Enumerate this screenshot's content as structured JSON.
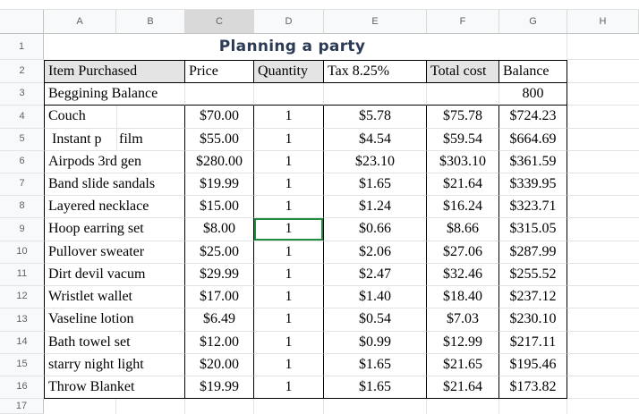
{
  "sheet": {
    "title": "Planning a party",
    "selected_cell": "D9",
    "highlighted_column": "C",
    "colors": {
      "selection_green": "#1e8e3e",
      "title_color": "#2b3a55",
      "header_row_fill": "#e4e4e4",
      "highlighted_column_header_fill": "#d9d9d9"
    },
    "column_letters": [
      "A",
      "B",
      "C",
      "D",
      "E",
      "F",
      "G",
      "H"
    ],
    "row_numbers": [
      "1",
      "2",
      "3",
      "4",
      "5",
      "6",
      "7",
      "8",
      "9",
      "10",
      "11",
      "12",
      "13",
      "14",
      "15",
      "16",
      "17"
    ],
    "header_row": {
      "item": "Item Purchased",
      "price": "Price",
      "qty": "Quantity",
      "tax": "Tax 8.25%",
      "total": "Total cost",
      "balance": "Balance"
    },
    "balance_row": {
      "label": "Beggining Balance",
      "balance": "800"
    },
    "rows": [
      {
        "item_a": "Couch",
        "price": "$70.00",
        "qty": "1",
        "tax": "$5.78",
        "total": "$75.78",
        "balance": "$724.23"
      },
      {
        "item_a": " Instant p",
        "item_b": "film",
        "price": "$55.00",
        "qty": "1",
        "tax": "$4.54",
        "total": "$59.54",
        "balance": "$664.69"
      },
      {
        "item_a": "Airpods 3rd gen",
        "price": "$280.00",
        "qty": "1",
        "tax": "$23.10",
        "total": "$303.10",
        "balance": "$361.59"
      },
      {
        "item_a": "Band slide sandals",
        "price": "$19.99",
        "qty": "1",
        "tax": "$1.65",
        "total": "$21.64",
        "balance": "$339.95"
      },
      {
        "item_a": "Layered necklace",
        "price": "$15.00",
        "qty": "1",
        "tax": "$1.24",
        "total": "$16.24",
        "balance": "$323.71"
      },
      {
        "item_a": "Hoop earring set",
        "price": "$8.00",
        "qty": "1",
        "tax": "$0.66",
        "total": "$8.66",
        "balance": "$315.05"
      },
      {
        "item_a": "Pullover sweater",
        "price": "$25.00",
        "qty": "1",
        "tax": "$2.06",
        "total": "$27.06",
        "balance": "$287.99"
      },
      {
        "item_a": "Dirt devil vacum",
        "price": "$29.99",
        "qty": "1",
        "tax": "$2.47",
        "total": "$32.46",
        "balance": "$255.52"
      },
      {
        "item_a": "Wristlet wallet",
        "price": "$17.00",
        "qty": "1",
        "tax": "$1.40",
        "total": "$18.40",
        "balance": "$237.12"
      },
      {
        "item_a": "Vaseline lotion",
        "price": "$6.49",
        "qty": "1",
        "tax": "$0.54",
        "total": "$7.03",
        "balance": "$230.10"
      },
      {
        "item_a": "Bath towel set",
        "price": "$12.00",
        "qty": "1",
        "tax": "$0.99",
        "total": "$12.99",
        "balance": "$217.11"
      },
      {
        "item_a": "starry night light",
        "price": "$20.00",
        "qty": "1",
        "tax": "$1.65",
        "total": "$21.65",
        "balance": "$195.46"
      },
      {
        "item_a": "Throw Blanket",
        "price": "$19.99",
        "qty": "1",
        "tax": "$1.65",
        "total": "$21.64",
        "balance": "$173.82"
      }
    ]
  }
}
